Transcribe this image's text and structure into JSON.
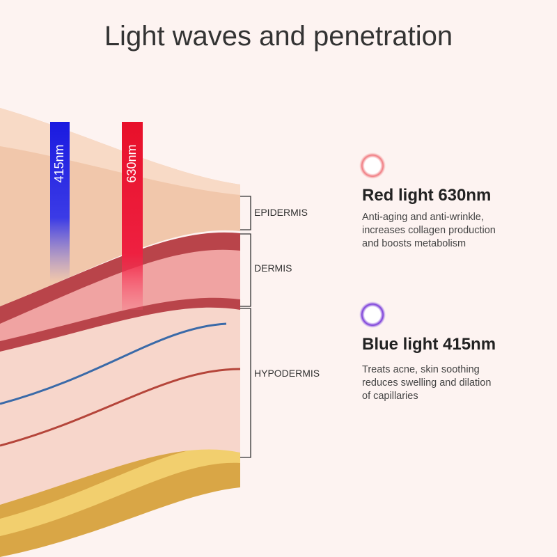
{
  "title": "Light waves and penetration",
  "beams": [
    {
      "label": "415nm"
    },
    {
      "label": "630nm"
    }
  ],
  "layers": [
    {
      "label": "EPIDERMIS"
    },
    {
      "label": "DERMIS"
    },
    {
      "label": "HYPODERMIS"
    }
  ],
  "items": [
    {
      "heading": "Red light 630nm",
      "description": [
        "Anti-aging and anti-wrinkle,",
        "increases collagen production",
        "and boosts metabolism"
      ]
    },
    {
      "heading": "Blue light 415nm",
      "description": [
        "Treats acne, skin soothing",
        "reduces swelling and dilation",
        "of capillaries"
      ]
    }
  ]
}
